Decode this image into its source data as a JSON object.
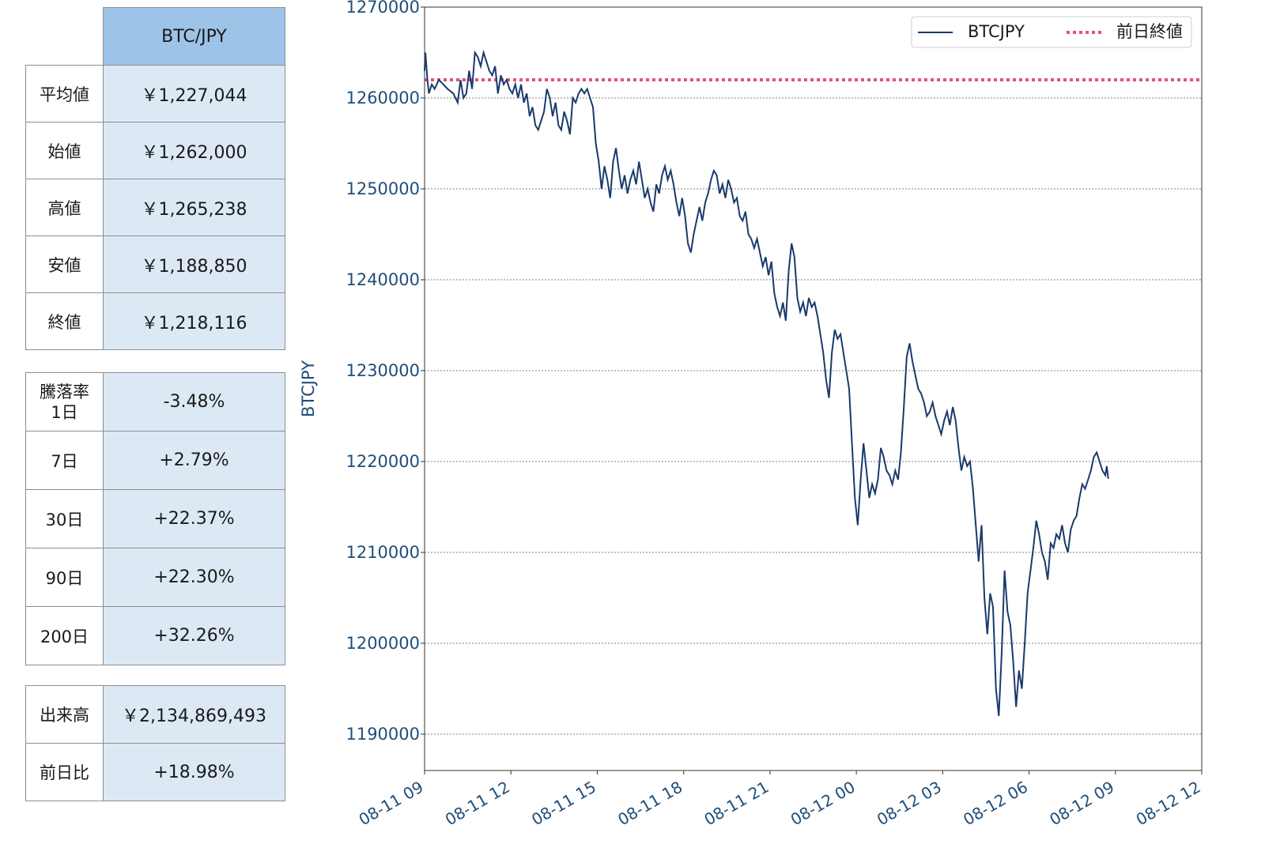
{
  "summary": {
    "header": "BTC/JPY",
    "rows": [
      {
        "label": "平均値",
        "value": "￥1,227,044"
      },
      {
        "label": "始値",
        "value": "￥1,262,000"
      },
      {
        "label": "高値",
        "value": "￥1,265,238"
      },
      {
        "label": "安値",
        "value": "￥1,188,850"
      },
      {
        "label": "終値",
        "value": "￥1,218,116"
      }
    ]
  },
  "change": {
    "first_label_line1": "騰落率",
    "first_label_line2": "1日",
    "rows": [
      {
        "label": "1日",
        "value": "-3.48%"
      },
      {
        "label": "7日",
        "value": "+2.79%"
      },
      {
        "label": "30日",
        "value": "+22.37%"
      },
      {
        "label": "90日",
        "value": "+22.30%"
      },
      {
        "label": "200日",
        "value": "+32.26%"
      }
    ]
  },
  "volume": {
    "rows": [
      {
        "label": "出来高",
        "value": "￥2,134,869,493"
      },
      {
        "label": "前日比",
        "value": "+18.98%"
      }
    ]
  },
  "chart_data": {
    "type": "line",
    "ylabel": "BTCJPY",
    "xlabel": "",
    "ylim": [
      1186000,
      1270000
    ],
    "y_ticks": [
      "1190000",
      "1200000",
      "1210000",
      "1220000",
      "1230000",
      "1240000",
      "1250000",
      "1260000",
      "1270000"
    ],
    "x_ticks": [
      "08-11 09",
      "08-11 12",
      "08-11 15",
      "08-11 18",
      "08-11 21",
      "08-12 00",
      "08-12 03",
      "08-12 06",
      "08-12 09",
      "08-12 12"
    ],
    "x_unit": "hours after 08-11 09:00",
    "xlim": [
      0,
      27
    ],
    "grid": "horizontal",
    "legend_position": "top-right",
    "reference_line": {
      "name": "前日終値",
      "value": 1262000,
      "color": "#e0557a"
    },
    "series": [
      {
        "name": "BTCJPY",
        "color": "#1a3a6b",
        "points": [
          [
            0.0,
            1263000
          ],
          [
            0.03,
            1265000
          ],
          [
            0.1,
            1262000
          ],
          [
            0.15,
            1260500
          ],
          [
            0.25,
            1261500
          ],
          [
            0.35,
            1261000
          ],
          [
            0.5,
            1262000
          ],
          [
            0.65,
            1261500
          ],
          [
            0.8,
            1261000
          ],
          [
            1.0,
            1260500
          ],
          [
            1.15,
            1259500
          ],
          [
            1.25,
            1262000
          ],
          [
            1.35,
            1260000
          ],
          [
            1.45,
            1260500
          ],
          [
            1.55,
            1263000
          ],
          [
            1.65,
            1261000
          ],
          [
            1.75,
            1265000
          ],
          [
            1.85,
            1264500
          ],
          [
            1.95,
            1263500
          ],
          [
            2.05,
            1265000
          ],
          [
            2.15,
            1264000
          ],
          [
            2.25,
            1263000
          ],
          [
            2.35,
            1262500
          ],
          [
            2.45,
            1263500
          ],
          [
            2.55,
            1260500
          ],
          [
            2.65,
            1262500
          ],
          [
            2.75,
            1261500
          ],
          [
            2.85,
            1262000
          ],
          [
            2.95,
            1261000
          ],
          [
            3.05,
            1260500
          ],
          [
            3.15,
            1261500
          ],
          [
            3.25,
            1260000
          ],
          [
            3.35,
            1261500
          ],
          [
            3.45,
            1259500
          ],
          [
            3.55,
            1260500
          ],
          [
            3.65,
            1258000
          ],
          [
            3.75,
            1259000
          ],
          [
            3.85,
            1257000
          ],
          [
            3.95,
            1256500
          ],
          [
            4.05,
            1257500
          ],
          [
            4.15,
            1258500
          ],
          [
            4.25,
            1261000
          ],
          [
            4.35,
            1260000
          ],
          [
            4.45,
            1258000
          ],
          [
            4.55,
            1259500
          ],
          [
            4.65,
            1257000
          ],
          [
            4.75,
            1256500
          ],
          [
            4.85,
            1258500
          ],
          [
            4.95,
            1257500
          ],
          [
            5.05,
            1256000
          ],
          [
            5.15,
            1260000
          ],
          [
            5.25,
            1259500
          ],
          [
            5.35,
            1260500
          ],
          [
            5.45,
            1261000
          ],
          [
            5.55,
            1260500
          ],
          [
            5.65,
            1261000
          ],
          [
            5.75,
            1260000
          ],
          [
            5.85,
            1259000
          ],
          [
            5.95,
            1255000
          ],
          [
            6.05,
            1253000
          ],
          [
            6.15,
            1250000
          ],
          [
            6.25,
            1252500
          ],
          [
            6.35,
            1251000
          ],
          [
            6.45,
            1249000
          ],
          [
            6.55,
            1253000
          ],
          [
            6.65,
            1254500
          ],
          [
            6.75,
            1252000
          ],
          [
            6.85,
            1250000
          ],
          [
            6.95,
            1251500
          ],
          [
            7.05,
            1249500
          ],
          [
            7.15,
            1251000
          ],
          [
            7.25,
            1252000
          ],
          [
            7.35,
            1250500
          ],
          [
            7.45,
            1253000
          ],
          [
            7.55,
            1251000
          ],
          [
            7.65,
            1249000
          ],
          [
            7.75,
            1250000
          ],
          [
            7.85,
            1248500
          ],
          [
            7.95,
            1247500
          ],
          [
            8.05,
            1250500
          ],
          [
            8.15,
            1249500
          ],
          [
            8.25,
            1251500
          ],
          [
            8.35,
            1252500
          ],
          [
            8.45,
            1251000
          ],
          [
            8.55,
            1252000
          ],
          [
            8.65,
            1250500
          ],
          [
            8.75,
            1248500
          ],
          [
            8.85,
            1247000
          ],
          [
            8.95,
            1249000
          ],
          [
            9.05,
            1247000
          ],
          [
            9.15,
            1244000
          ],
          [
            9.25,
            1243000
          ],
          [
            9.35,
            1245000
          ],
          [
            9.45,
            1246500
          ],
          [
            9.55,
            1248000
          ],
          [
            9.65,
            1246500
          ],
          [
            9.75,
            1248500
          ],
          [
            9.85,
            1249500
          ],
          [
            9.95,
            1251000
          ],
          [
            10.05,
            1252000
          ],
          [
            10.15,
            1251500
          ],
          [
            10.25,
            1249500
          ],
          [
            10.35,
            1250500
          ],
          [
            10.45,
            1249000
          ],
          [
            10.55,
            1251000
          ],
          [
            10.65,
            1250000
          ],
          [
            10.75,
            1248500
          ],
          [
            10.85,
            1249000
          ],
          [
            10.95,
            1247000
          ],
          [
            11.05,
            1246500
          ],
          [
            11.15,
            1247500
          ],
          [
            11.25,
            1245000
          ],
          [
            11.35,
            1244500
          ],
          [
            11.45,
            1243500
          ],
          [
            11.55,
            1244500
          ],
          [
            11.65,
            1243000
          ],
          [
            11.75,
            1241500
          ],
          [
            11.85,
            1242500
          ],
          [
            11.95,
            1240500
          ],
          [
            12.05,
            1242000
          ],
          [
            12.15,
            1238500
          ],
          [
            12.25,
            1237000
          ],
          [
            12.35,
            1236000
          ],
          [
            12.45,
            1237500
          ],
          [
            12.55,
            1235500
          ],
          [
            12.65,
            1241000
          ],
          [
            12.75,
            1244000
          ],
          [
            12.85,
            1242500
          ],
          [
            12.95,
            1238000
          ],
          [
            13.05,
            1236500
          ],
          [
            13.15,
            1237500
          ],
          [
            13.25,
            1236000
          ],
          [
            13.35,
            1238000
          ],
          [
            13.45,
            1237000
          ],
          [
            13.55,
            1237500
          ],
          [
            13.65,
            1236000
          ],
          [
            13.75,
            1234000
          ],
          [
            13.85,
            1232000
          ],
          [
            13.95,
            1229000
          ],
          [
            14.05,
            1227000
          ],
          [
            14.15,
            1232000
          ],
          [
            14.25,
            1234500
          ],
          [
            14.35,
            1233500
          ],
          [
            14.45,
            1234000
          ],
          [
            14.55,
            1232000
          ],
          [
            14.65,
            1230000
          ],
          [
            14.75,
            1228000
          ],
          [
            14.85,
            1222000
          ],
          [
            14.95,
            1216000
          ],
          [
            15.05,
            1213000
          ],
          [
            15.15,
            1218000
          ],
          [
            15.25,
            1222000
          ],
          [
            15.35,
            1219000
          ],
          [
            15.45,
            1216000
          ],
          [
            15.55,
            1217500
          ],
          [
            15.65,
            1216500
          ],
          [
            15.75,
            1218000
          ],
          [
            15.85,
            1221500
          ],
          [
            15.95,
            1220500
          ],
          [
            16.05,
            1219000
          ],
          [
            16.15,
            1218500
          ],
          [
            16.25,
            1217500
          ],
          [
            16.35,
            1219000
          ],
          [
            16.45,
            1218000
          ],
          [
            16.55,
            1221000
          ],
          [
            16.65,
            1226000
          ],
          [
            16.75,
            1231500
          ],
          [
            16.85,
            1233000
          ],
          [
            16.95,
            1231000
          ],
          [
            17.05,
            1229500
          ],
          [
            17.15,
            1228000
          ],
          [
            17.25,
            1227500
          ],
          [
            17.35,
            1226500
          ],
          [
            17.45,
            1225000
          ],
          [
            17.55,
            1225500
          ],
          [
            17.65,
            1226500
          ],
          [
            17.75,
            1225000
          ],
          [
            17.85,
            1224000
          ],
          [
            17.95,
            1223000
          ],
          [
            18.05,
            1224500
          ],
          [
            18.15,
            1225500
          ],
          [
            18.25,
            1224000
          ],
          [
            18.35,
            1226000
          ],
          [
            18.45,
            1224500
          ],
          [
            18.55,
            1221500
          ],
          [
            18.65,
            1219000
          ],
          [
            18.75,
            1220500
          ],
          [
            18.85,
            1219500
          ],
          [
            18.95,
            1220000
          ],
          [
            19.05,
            1217000
          ],
          [
            19.15,
            1213000
          ],
          [
            19.25,
            1209000
          ],
          [
            19.35,
            1213000
          ],
          [
            19.45,
            1205000
          ],
          [
            19.55,
            1201000
          ],
          [
            19.65,
            1205500
          ],
          [
            19.75,
            1204000
          ],
          [
            19.85,
            1195000
          ],
          [
            19.95,
            1192000
          ],
          [
            20.05,
            1199000
          ],
          [
            20.15,
            1208000
          ],
          [
            20.25,
            1203500
          ],
          [
            20.35,
            1202000
          ],
          [
            20.45,
            1198000
          ],
          [
            20.55,
            1193000
          ],
          [
            20.65,
            1197000
          ],
          [
            20.75,
            1195000
          ],
          [
            20.85,
            1200000
          ],
          [
            20.95,
            1205500
          ],
          [
            21.05,
            1208000
          ],
          [
            21.15,
            1210500
          ],
          [
            21.25,
            1213500
          ],
          [
            21.35,
            1212000
          ],
          [
            21.45,
            1210000
          ],
          [
            21.55,
            1209000
          ],
          [
            21.65,
            1207000
          ],
          [
            21.75,
            1211000
          ],
          [
            21.85,
            1210500
          ],
          [
            21.95,
            1212000
          ],
          [
            22.05,
            1211500
          ],
          [
            22.15,
            1213000
          ],
          [
            22.25,
            1211000
          ],
          [
            22.35,
            1210000
          ],
          [
            22.45,
            1212500
          ],
          [
            22.55,
            1213500
          ],
          [
            22.65,
            1214000
          ],
          [
            22.75,
            1216000
          ],
          [
            22.85,
            1217500
          ],
          [
            22.95,
            1217000
          ],
          [
            23.05,
            1218000
          ],
          [
            23.15,
            1219000
          ],
          [
            23.25,
            1220500
          ],
          [
            23.35,
            1221000
          ],
          [
            23.45,
            1220000
          ],
          [
            23.55,
            1219000
          ],
          [
            23.65,
            1218500
          ],
          [
            23.7,
            1219500
          ],
          [
            23.75,
            1218100
          ]
        ]
      }
    ]
  }
}
